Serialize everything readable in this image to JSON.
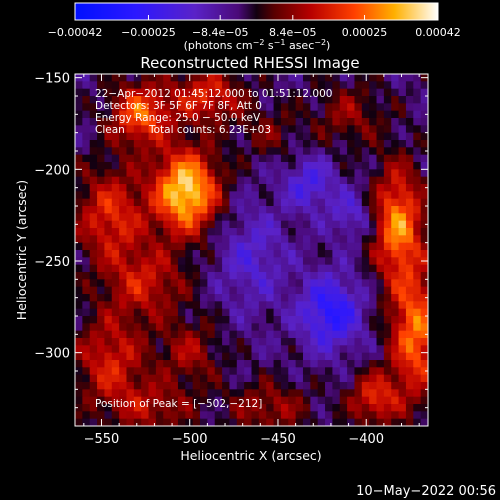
{
  "chart_data": {
    "type": "heatmap",
    "title": "Reconstructed RHESSI Image",
    "xlabel": "Heliocentric X (arcsec)",
    "ylabel": "Heliocentric Y (arcsec)",
    "xlim": [
      -565,
      -365
    ],
    "ylim": [
      -340,
      -148
    ],
    "x_ticks": [
      -550,
      -500,
      -450,
      -400
    ],
    "x_tick_labels": [
      "−550",
      "−500",
      "−450",
      "−400"
    ],
    "y_ticks": [
      -150,
      -200,
      -250,
      -300
    ],
    "y_tick_labels": [
      "−150",
      "−200",
      "−250",
      "−300"
    ],
    "colorbar": {
      "range": [
        -0.00042,
        0.00042
      ],
      "ticks": [
        -0.00042,
        -0.00025,
        -8.4e-05,
        8.4e-05,
        0.00025,
        0.00042
      ],
      "tick_labels": [
        "−0.00042",
        "−0.00025",
        "−8.4e−05",
        "8.4e−05",
        "0.00025",
        "0.00042"
      ],
      "units_line1": "(photons cm",
      "units_exp1": "−2",
      "units_line2": " s",
      "units_exp2": "−1",
      "units_line3": " asec",
      "units_exp3": "−2",
      "units_close": ")"
    },
    "annotations": {
      "time_range": "22−Apr−2012 01:45:12.000 to 01:51:12.000",
      "detectors": "Detectors: 3F 5F 6F 7F 8F, Att 0",
      "energy_range": "Energy Range: 25.0 − 50.0 keV",
      "clean_label": "Clean",
      "total_counts": "Total counts: 6.23E+03",
      "peak_position": "Position of Peak = [−502,−212]"
    },
    "peak": {
      "x": -502,
      "y": -212
    },
    "sources": [
      {
        "x": -502,
        "y": -212,
        "sx": 13,
        "sy": 16,
        "amp": 0.00042
      },
      {
        "x": -528,
        "y": -170,
        "sx": 12,
        "sy": 12,
        "amp": 0.00028
      },
      {
        "x": -490,
        "y": -160,
        "sx": 14,
        "sy": 10,
        "amp": 0.00022
      },
      {
        "x": -545,
        "y": -225,
        "sx": 14,
        "sy": 18,
        "amp": 0.00022
      },
      {
        "x": -525,
        "y": -262,
        "sx": 16,
        "sy": 14,
        "amp": 0.00018
      },
      {
        "x": -545,
        "y": -305,
        "sx": 14,
        "sy": 18,
        "amp": 0.0002
      },
      {
        "x": -500,
        "y": -300,
        "sx": 12,
        "sy": 12,
        "amp": 0.00014
      },
      {
        "x": -520,
        "y": -330,
        "sx": 16,
        "sy": 10,
        "amp": 0.00014
      },
      {
        "x": -382,
        "y": -230,
        "sx": 10,
        "sy": 22,
        "amp": 0.00032
      },
      {
        "x": -372,
        "y": -290,
        "sx": 10,
        "sy": 24,
        "amp": 0.0003
      },
      {
        "x": -395,
        "y": -325,
        "sx": 10,
        "sy": 10,
        "amp": 0.00022
      },
      {
        "x": -455,
        "y": -330,
        "sx": 16,
        "sy": 10,
        "amp": 0.00014
      },
      {
        "x": -410,
        "y": -170,
        "sx": 14,
        "sy": 12,
        "amp": 0.00012
      },
      {
        "x": -455,
        "y": -180,
        "sx": 12,
        "sy": 10,
        "amp": 9e-05
      },
      {
        "x": -420,
        "y": -278,
        "sx": 12,
        "sy": 14,
        "amp": -0.00024
      },
      {
        "x": -432,
        "y": -208,
        "sx": 10,
        "sy": 10,
        "amp": -0.00016
      },
      {
        "x": -465,
        "y": -248,
        "sx": 14,
        "sy": 20,
        "amp": -0.00012
      },
      {
        "x": -408,
        "y": -225,
        "sx": 9,
        "sy": 9,
        "amp": -0.00012
      }
    ]
  },
  "footer": {
    "timestamp": "10−May−2022 00:56"
  }
}
